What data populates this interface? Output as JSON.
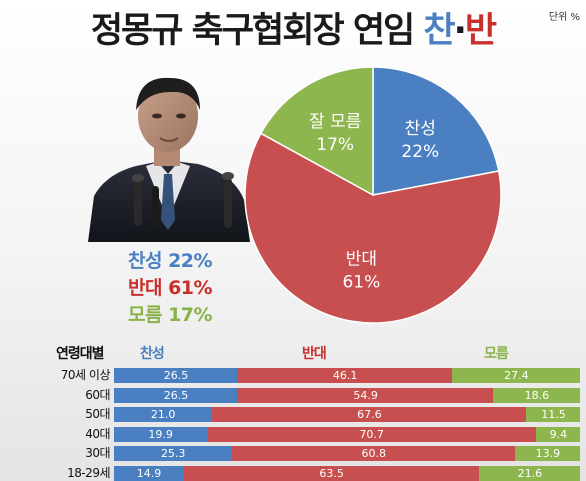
{
  "header": {
    "title_main": "정몽규 축구협회장 연임",
    "title_yes": "찬",
    "title_dot": "·",
    "title_no": "반",
    "unit": "단위 %"
  },
  "photo": {
    "subject": "portrait-photo"
  },
  "summary": {
    "yes": "찬성 22%",
    "no": "반대 61%",
    "dk": "모름 17%"
  },
  "colors": {
    "yes": "#4a7fc1",
    "no": "#c84f4f",
    "dk": "#8db74e"
  },
  "chart_data": [
    {
      "type": "pie",
      "slices": [
        {
          "label": "찬성",
          "value": 22,
          "text": "22%",
          "color": "#4a7fc1"
        },
        {
          "label": "반대",
          "value": 61,
          "text": "61%",
          "color": "#c84f4f"
        },
        {
          "label": "잘 모름",
          "value": 17,
          "text": "17%",
          "color": "#8db74e"
        }
      ]
    },
    {
      "type": "bar",
      "stacked": true,
      "orientation": "horizontal",
      "group_label": "연령대별",
      "legend": [
        "찬성",
        "반대",
        "모름"
      ],
      "categories": [
        "70세 이상",
        "60대",
        "50대",
        "40대",
        "30대",
        "18-29세"
      ],
      "series": [
        {
          "name": "찬성",
          "values": [
            26.5,
            26.5,
            21.0,
            19.9,
            25.3,
            14.9
          ]
        },
        {
          "name": "반대",
          "values": [
            46.1,
            54.9,
            67.6,
            70.7,
            60.8,
            63.5
          ]
        },
        {
          "name": "모름",
          "values": [
            27.4,
            18.6,
            11.5,
            9.4,
            13.9,
            21.6
          ]
        }
      ]
    }
  ]
}
